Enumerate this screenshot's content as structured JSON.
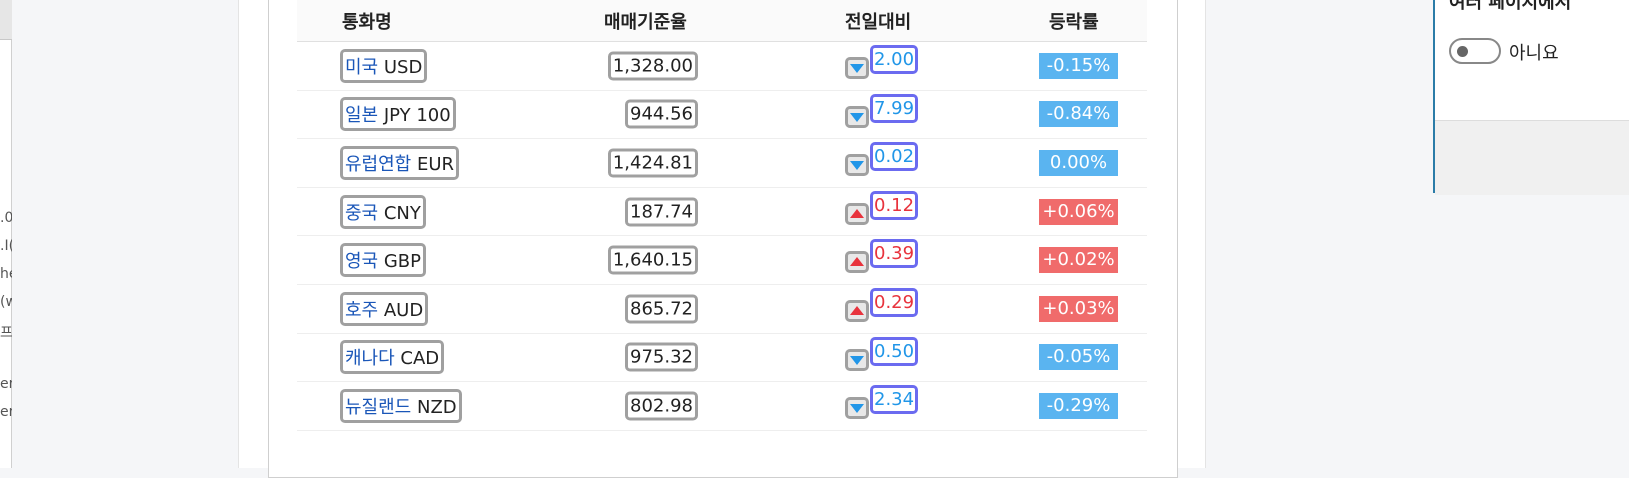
{
  "table": {
    "headers": {
      "name": "통화명",
      "base_rate": "매매기준율",
      "change": "전일대비",
      "rate_change": "등락률"
    },
    "rows": [
      {
        "name": "미국",
        "code": "USD",
        "rate": "1,328.00",
        "direction": "down",
        "diff": "2.00",
        "pct": "-0.15%"
      },
      {
        "name": "일본",
        "code": "JPY 100",
        "rate": "944.56",
        "direction": "down",
        "diff": "7.99",
        "pct": "-0.84%"
      },
      {
        "name": "유럽연합",
        "code": "EUR",
        "rate": "1,424.81",
        "direction": "down",
        "diff": "0.02",
        "pct": "0.00%"
      },
      {
        "name": "중국",
        "code": "CNY",
        "rate": "187.74",
        "direction": "up",
        "diff": "0.12",
        "pct": "+0.06%"
      },
      {
        "name": "영국",
        "code": "GBP",
        "rate": "1,640.15",
        "direction": "up",
        "diff": "0.39",
        "pct": "+0.02%"
      },
      {
        "name": "호주",
        "code": "AUD",
        "rate": "865.72",
        "direction": "up",
        "diff": "0.29",
        "pct": "+0.03%"
      },
      {
        "name": "캐나다",
        "code": "CAD",
        "rate": "975.32",
        "direction": "down",
        "diff": "0.50",
        "pct": "-0.05%"
      },
      {
        "name": "뉴질랜드",
        "code": "NZD",
        "rate": "802.98",
        "direction": "down",
        "diff": "2.34",
        "pct": "-0.29%"
      }
    ]
  },
  "colors": {
    "down": "#2196e8",
    "up": "#e8333d",
    "down_badge": "#5ab4f0",
    "up_badge": "#f06b6b"
  },
  "popup": {
    "heading": "여러 페이지에서",
    "toggle_label": "아니요"
  },
  "left_fragments": [
    ".0",
    ".I(",
    "he",
    "(w",
    "프",
    "er",
    "er"
  ]
}
